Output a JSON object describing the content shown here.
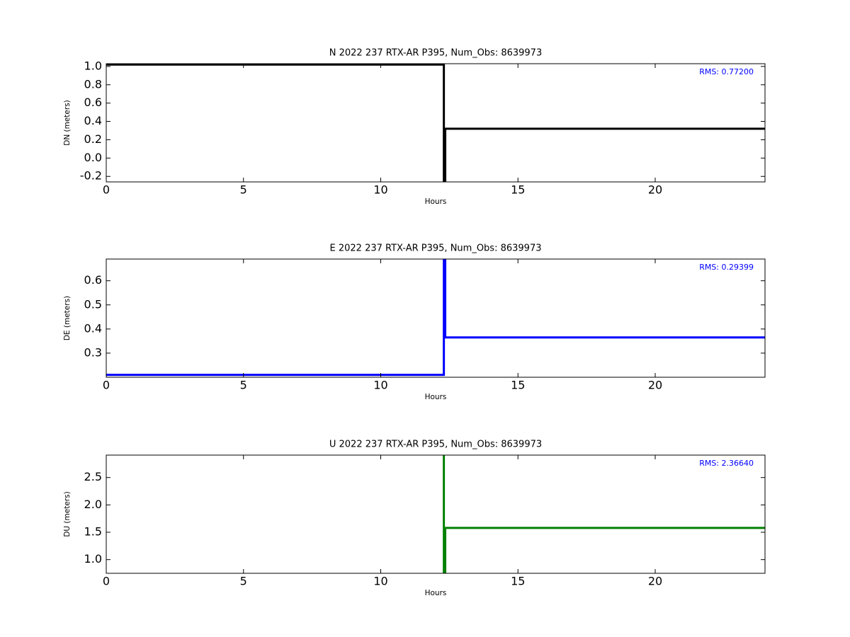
{
  "chart_data": [
    {
      "type": "line",
      "title": "N 2022 237 RTX-AR  P395, Num_Obs: 8639973",
      "xlabel": "Hours",
      "ylabel": "DN (meters)",
      "annotation": "RMS:  0.77200",
      "annotation_color": "#0000ff",
      "x": [
        0,
        12.3,
        12.3,
        12.35,
        12.35,
        24
      ],
      "series": [
        {
          "name": "DN",
          "color": "#000000",
          "values": [
            1.02,
            1.02,
            -0.26,
            -0.26,
            0.32,
            0.32
          ]
        }
      ],
      "xlim": [
        0,
        24
      ],
      "xticks": [
        0,
        5,
        10,
        15,
        20
      ],
      "ylim": [
        -0.26,
        1.03
      ],
      "yticks": [
        -0.2,
        0.0,
        0.2,
        0.4,
        0.6,
        0.8,
        1.0
      ]
    },
    {
      "type": "line",
      "title": "E 2022 237 RTX-AR  P395, Num_Obs: 8639973",
      "xlabel": "Hours",
      "ylabel": "DE (meters)",
      "annotation": "RMS:  0.29399",
      "annotation_color": "#0000ff",
      "x": [
        0,
        12.3,
        12.3,
        12.35,
        12.35,
        24
      ],
      "series": [
        {
          "name": "DE",
          "color": "#0000ff",
          "values": [
            0.21,
            0.21,
            0.69,
            0.69,
            0.365,
            0.365
          ]
        }
      ],
      "xlim": [
        0,
        24
      ],
      "xticks": [
        0,
        5,
        10,
        15,
        20
      ],
      "ylim": [
        0.2,
        0.69
      ],
      "yticks": [
        0.3,
        0.4,
        0.5,
        0.6
      ]
    },
    {
      "type": "line",
      "title": "U 2022 237 RTX-AR  P395, Num_Obs: 8639973",
      "xlabel": "Hours",
      "ylabel": "DU (meters)",
      "annotation": "RMS:  2.36640",
      "annotation_color": "#0000ff",
      "x": [
        12.3,
        12.3,
        12.35,
        12.35,
        24
      ],
      "series": [
        {
          "name": "DU",
          "color": "#008000",
          "values": [
            2.91,
            0.75,
            0.75,
            1.58,
            1.58
          ]
        }
      ],
      "xlim": [
        0,
        24
      ],
      "xticks": [
        0,
        5,
        10,
        15,
        20
      ],
      "ylim": [
        0.75,
        2.91
      ],
      "yticks": [
        1.0,
        1.5,
        2.0,
        2.5
      ]
    }
  ]
}
